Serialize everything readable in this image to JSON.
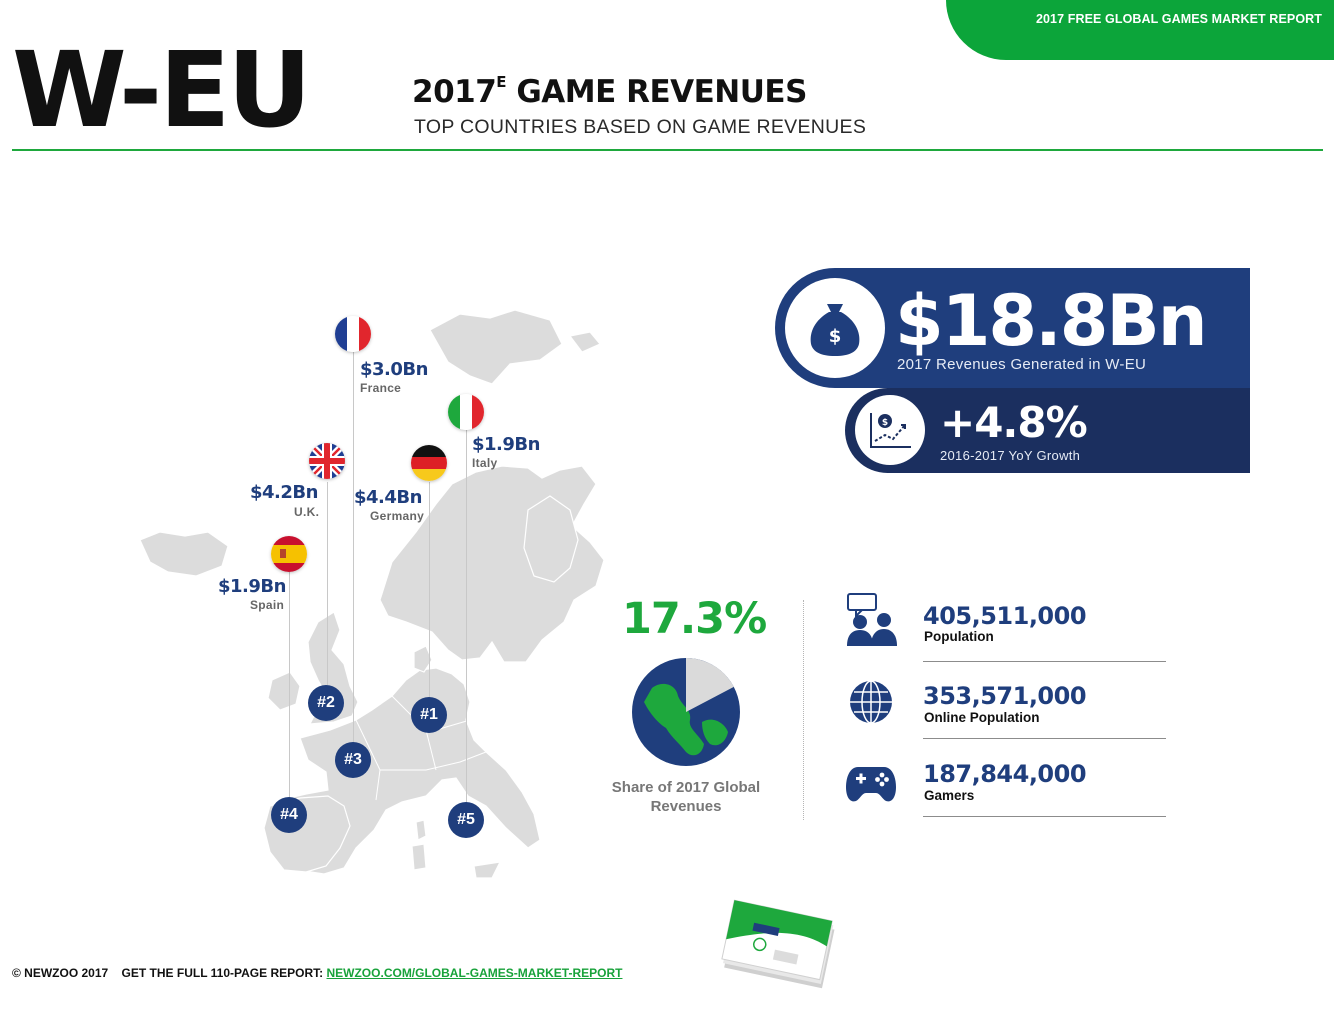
{
  "header": {
    "report_tag": "2017 FREE GLOBAL GAMES MARKET REPORT",
    "region": "W-EU",
    "title_year": "2017",
    "title_sup": "E",
    "title_rest": " GAME REVENUES",
    "subtitle": "TOP COUNTRIES BASED ON GAME REVENUES"
  },
  "countries": [
    {
      "rank": "#1",
      "value": "$4.4Bn",
      "name": "Germany"
    },
    {
      "rank": "#2",
      "value": "$4.2Bn",
      "name": "U.K."
    },
    {
      "rank": "#3",
      "value": "$3.0Bn",
      "name": "France"
    },
    {
      "rank": "#4",
      "value": "$1.9Bn",
      "name": "Spain"
    },
    {
      "rank": "#5",
      "value": "$1.9Bn",
      "name": "Italy"
    }
  ],
  "revenue": {
    "value": "$18.8Bn",
    "label": "2017 Revenues Generated in W-EU",
    "icon": "money-bag-icon"
  },
  "growth": {
    "value": "+4.8%",
    "label": "2016-2017 YoY Growth",
    "icon": "growth-chart-icon"
  },
  "share": {
    "percent": "17.3%",
    "fraction": 0.173,
    "label": "Share of 2017 Global Revenues"
  },
  "stats": [
    {
      "value": "405,511,000",
      "label": "Population",
      "icon": "people-chat-icon"
    },
    {
      "value": "353,571,000",
      "label": "Online Population",
      "icon": "globe-icon"
    },
    {
      "value": "187,844,000",
      "label": "Gamers",
      "icon": "gamepad-icon"
    }
  ],
  "footer": {
    "copyright": "© NEWZOO 2017",
    "cta": "GET THE FULL 110-PAGE REPORT:",
    "link": "NEWZOO.COM/GLOBAL-GAMES-MARKET-REPORT"
  },
  "colors": {
    "brand_green": "#1ea83d",
    "navy": "#1f3e7d",
    "navy_dark": "#1b2f5f",
    "map_gray": "#dcdcdc"
  }
}
